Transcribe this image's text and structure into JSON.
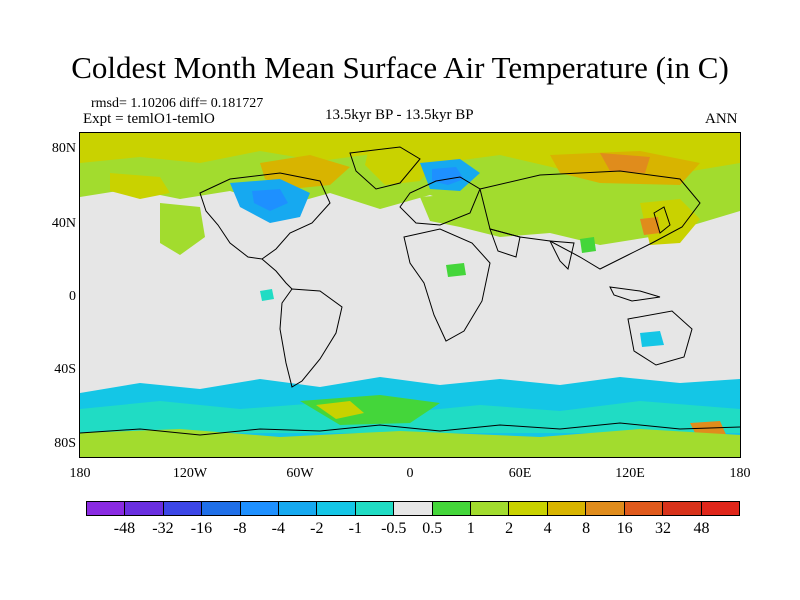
{
  "title": "Coldest Month Mean Surface Air Temperature (in C)",
  "stats": "rmsd= 1.10206 diff= 0.181727",
  "expt": "Expt = temlO1-temlO",
  "period": "13.5kyr BP - 13.5kyr BP",
  "season": "ANN",
  "lat_ticks": [
    "80N",
    "40N",
    "0",
    "40S",
    "80S"
  ],
  "lon_ticks": [
    "180",
    "120W",
    "60W",
    "0",
    "60E",
    "120E",
    "180"
  ],
  "colorbar": {
    "labels": [
      "-48",
      "-32",
      "-16",
      "-8",
      "-4",
      "-2",
      "-1",
      "-0.5",
      "0.5",
      "1",
      "2",
      "4",
      "8",
      "16",
      "32",
      "48"
    ],
    "colors": [
      "#8a2be2",
      "#6a2fe0",
      "#3c46e6",
      "#1f6fe8",
      "#1e90ff",
      "#16a9f0",
      "#14c6e6",
      "#20dcc4",
      "#e6e6e6",
      "#44d63a",
      "#a2dc2e",
      "#c9d200",
      "#d8b400",
      "#e08c1c",
      "#e05a1c",
      "#d8321a",
      "#e0261a"
    ]
  },
  "map_colors": {
    "background": "#e6e6e6",
    "coast": "#000000"
  }
}
